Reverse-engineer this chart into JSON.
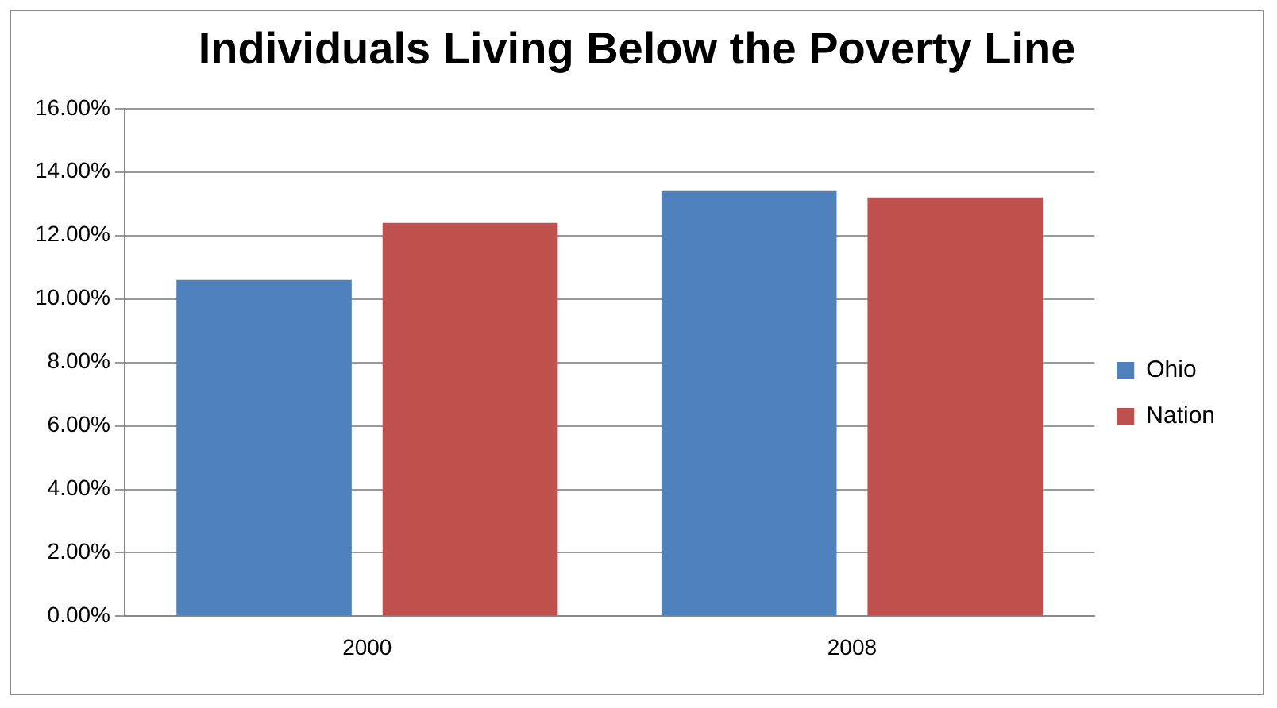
{
  "chart_data": {
    "type": "bar",
    "title": "Individuals Living Below the Poverty Line",
    "categories": [
      "2000",
      "2008"
    ],
    "series": [
      {
        "name": "Ohio",
        "color": "#4f81bd",
        "values": [
          10.6,
          13.4
        ]
      },
      {
        "name": "Nation",
        "color": "#c0504d",
        "values": [
          12.4,
          13.2
        ]
      }
    ],
    "ylim": [
      0,
      16
    ],
    "yticks": [
      {
        "value": 0,
        "label": "0.00%"
      },
      {
        "value": 2,
        "label": "2.00%"
      },
      {
        "value": 4,
        "label": "4.00%"
      },
      {
        "value": 6,
        "label": "6.00%"
      },
      {
        "value": 8,
        "label": "8.00%"
      },
      {
        "value": 10,
        "label": "10.00%"
      },
      {
        "value": 12,
        "label": "12.00%"
      },
      {
        "value": 14,
        "label": "14.00%"
      },
      {
        "value": 16,
        "label": "16.00%"
      }
    ],
    "grid": "y",
    "legend": "right"
  }
}
